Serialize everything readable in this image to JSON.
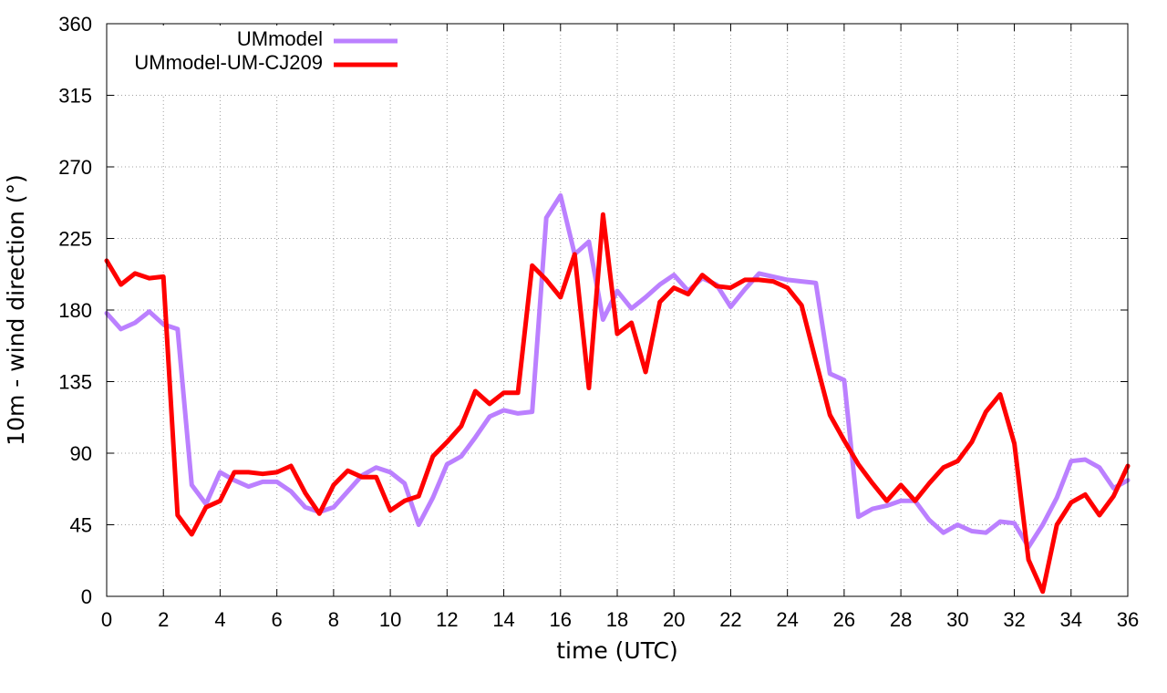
{
  "chart_data": {
    "type": "line",
    "xlabel": "time (UTC)",
    "ylabel": "10m - wind direction (°)",
    "xlim": [
      0,
      36
    ],
    "ylim": [
      0,
      360
    ],
    "xticks": [
      0,
      2,
      4,
      6,
      8,
      10,
      12,
      14,
      16,
      18,
      20,
      22,
      24,
      26,
      28,
      30,
      32,
      34,
      36
    ],
    "yticks": [
      0,
      45,
      90,
      135,
      180,
      225,
      270,
      315,
      360
    ],
    "grid": true,
    "legend_position": "top-left",
    "series": [
      {
        "name": "UMmodel",
        "color": "#bb80ff",
        "x": [
          0,
          0.5,
          1,
          1.5,
          2,
          2.5,
          3,
          3.5,
          4,
          4.5,
          5,
          5.5,
          6,
          6.5,
          7,
          7.5,
          8,
          8.5,
          9,
          9.5,
          10,
          10.5,
          11,
          11.5,
          12,
          12.5,
          13,
          13.5,
          14,
          14.5,
          15,
          15.5,
          16,
          16.5,
          17,
          17.5,
          18,
          18.5,
          19,
          19.5,
          20,
          20.5,
          21,
          21.5,
          22,
          22.5,
          23,
          23.5,
          24,
          24.5,
          25,
          25.5,
          26,
          26.5,
          27,
          27.5,
          28,
          28.5,
          29,
          29.5,
          30,
          30.5,
          31,
          31.5,
          32,
          32.5,
          33,
          33.5,
          34,
          34.5,
          35,
          35.5,
          36
        ],
        "values": [
          178,
          168,
          172,
          179,
          171,
          168,
          70,
          58,
          78,
          73,
          69,
          72,
          72,
          66,
          56,
          53,
          56,
          66,
          76,
          81,
          78,
          71,
          45,
          62,
          83,
          88,
          100,
          113,
          117,
          115,
          116,
          238,
          252,
          215,
          223,
          174,
          192,
          181,
          188,
          196,
          202,
          192,
          200,
          196,
          182,
          193,
          203,
          201,
          199,
          198,
          197,
          140,
          136,
          50,
          55,
          57,
          60,
          60,
          48,
          40,
          45,
          41,
          40,
          47,
          46,
          31,
          45,
          62,
          85,
          86,
          81,
          68,
          73
        ]
      },
      {
        "name": "UMmodel-UM-CJ209",
        "color": "#ff0000",
        "x": [
          0,
          0.5,
          1,
          1.5,
          2,
          2.5,
          3,
          3.5,
          4,
          4.5,
          5,
          5.5,
          6,
          6.5,
          7,
          7.5,
          8,
          8.5,
          9,
          9.5,
          10,
          10.5,
          11,
          11.5,
          12,
          12.5,
          13,
          13.5,
          14,
          14.5,
          15,
          15.5,
          16,
          16.5,
          17,
          17.5,
          18,
          18.5,
          19,
          19.5,
          20,
          20.5,
          21,
          21.5,
          22,
          22.5,
          23,
          23.5,
          24,
          24.5,
          25,
          25.5,
          26,
          26.5,
          27,
          27.5,
          28,
          28.5,
          29,
          29.5,
          30,
          30.5,
          31,
          31.5,
          32,
          32.5,
          33,
          33.5,
          34,
          34.5,
          35,
          35.5,
          36
        ],
        "values": [
          211,
          196,
          203,
          200,
          201,
          51,
          39,
          56,
          60,
          78,
          78,
          77,
          78,
          82,
          65,
          52,
          70,
          79,
          75,
          75,
          54,
          60,
          63,
          88,
          97,
          107,
          129,
          121,
          128,
          128,
          208,
          199,
          188,
          215,
          131,
          240,
          165,
          172,
          141,
          185,
          194,
          190,
          202,
          195,
          194,
          199,
          199,
          198,
          194,
          183,
          148,
          114,
          98,
          83,
          71,
          60,
          70,
          60,
          71,
          81,
          85,
          97,
          116,
          127,
          96,
          23,
          3,
          45,
          59,
          64,
          51,
          63,
          82
        ]
      }
    ]
  }
}
